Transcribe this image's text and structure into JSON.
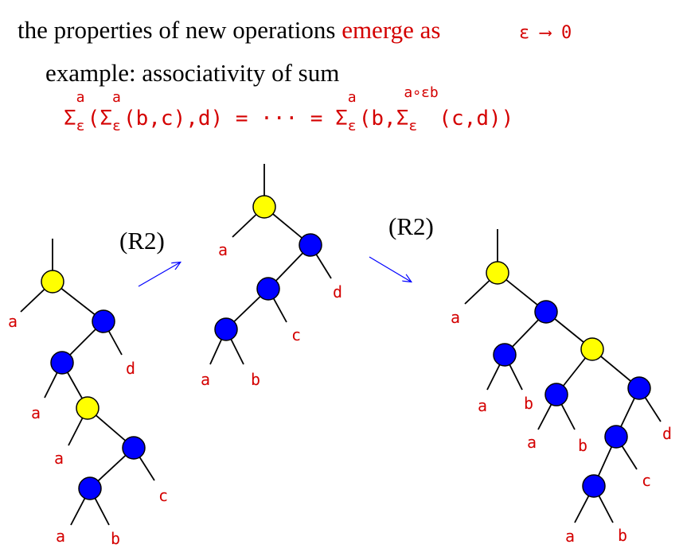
{
  "header": {
    "line1_black": "the properties of new operations",
    "line1_red": "emerge as",
    "limit_symbol": "ε ⟶ 0",
    "line2": "example: associativity of sum"
  },
  "formula": {
    "left": "Σ",
    "left_sup": "a",
    "left_sub": "ε",
    "left_inner": "(",
    "inner_sigma": "Σ",
    "inner_sup": "a",
    "inner_sub": "ε",
    "inner_args": "(b,c),d)",
    "middle": " = ··· = ",
    "right_sigma": "Σ",
    "right_sup": "a",
    "right_sub": "ε",
    "right_args": "(b,",
    "right_inner_sigma": "Σ",
    "right_inner_sup": "a∘εb",
    "right_inner_sub": "ε",
    "right_inner_args": "(c,d))"
  },
  "arrows": {
    "left_label": "(R2)",
    "right_label": "(R2)"
  },
  "colors": {
    "yellow_node": "#ffff00",
    "blue_node": "#0000ff",
    "label_red": "#d40000",
    "arrow_blue": "#0000ff"
  },
  "trees": {
    "tree1_labels": [
      "a",
      "d",
      "a",
      "a",
      "c",
      "a",
      "b"
    ],
    "tree2_labels": [
      "a",
      "d",
      "c",
      "a",
      "b"
    ],
    "tree3_labels": [
      "a",
      "a",
      "b",
      "a",
      "b",
      "d",
      "c",
      "a",
      "b"
    ]
  }
}
